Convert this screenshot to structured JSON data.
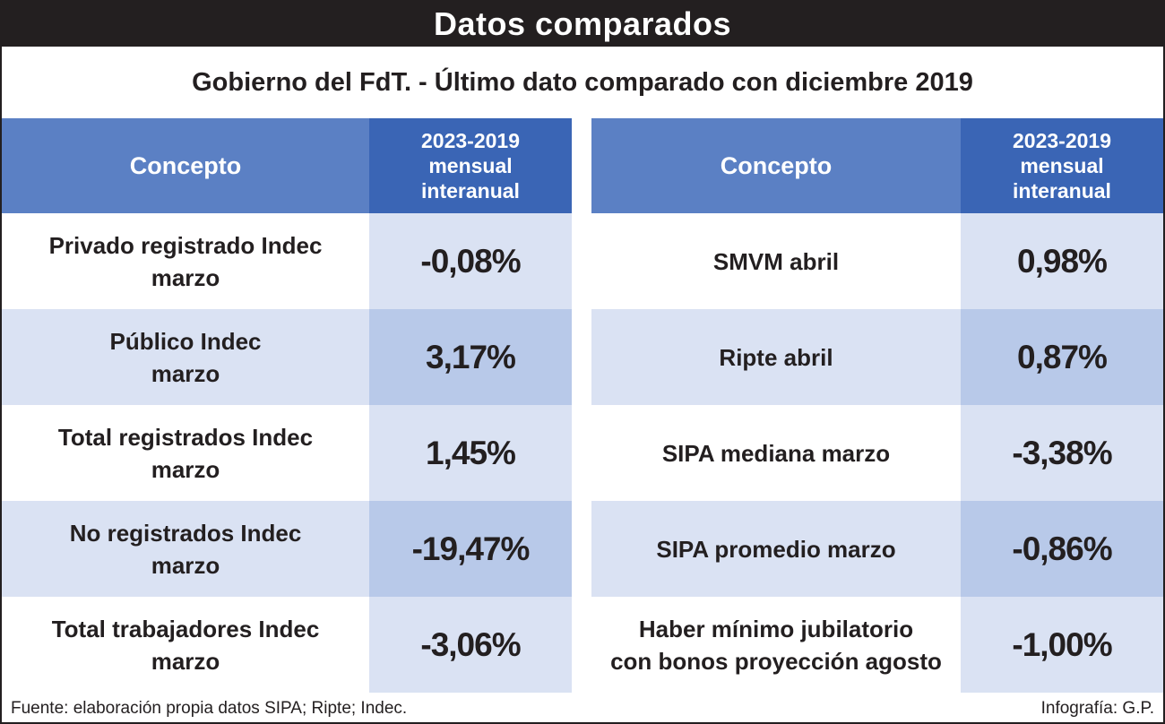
{
  "title": "Datos comparados",
  "subtitle": "Gobierno del FdT. - Último dato comparado con diciembre 2019",
  "chart_data": {
    "type": "table",
    "columns": [
      "Concepto",
      "2023-2019\nmensual\ninteranual"
    ],
    "tables": [
      {
        "rows": [
          {
            "concepto": "Privado registrado Indec\nmarzo",
            "valor": "-0,08%"
          },
          {
            "concepto": "Público Indec\nmarzo",
            "valor": "3,17%"
          },
          {
            "concepto": "Total registrados Indec\nmarzo",
            "valor": "1,45%"
          },
          {
            "concepto": "No registrados Indec\nmarzo",
            "valor": "-19,47%"
          },
          {
            "concepto": "Total trabajadores Indec\nmarzo",
            "valor": "-3,06%"
          }
        ]
      },
      {
        "rows": [
          {
            "concepto": "SMVM abril",
            "valor": "0,98%"
          },
          {
            "concepto": "Ripte abril",
            "valor": "0,87%"
          },
          {
            "concepto": "SIPA mediana marzo",
            "valor": "-3,38%"
          },
          {
            "concepto": "SIPA promedio marzo",
            "valor": "-0,86%"
          },
          {
            "concepto": "Haber mínimo jubilatorio\ncon bonos proyección agosto",
            "valor": "-1,00%"
          }
        ]
      }
    ]
  },
  "footer": {
    "source": "Fuente: elaboración propia datos SIPA; Ripte; Indec.",
    "credit": "Infografía: G.P."
  },
  "colors": {
    "title_bg": "#231f20",
    "header_concept_bg": "#5b80c4",
    "header_value_bg": "#3a65b5",
    "row_light": "#ffffff",
    "row_shaded": "#dae2f3",
    "value_light": "#dae2f3",
    "value_shaded": "#b8c9e9"
  }
}
